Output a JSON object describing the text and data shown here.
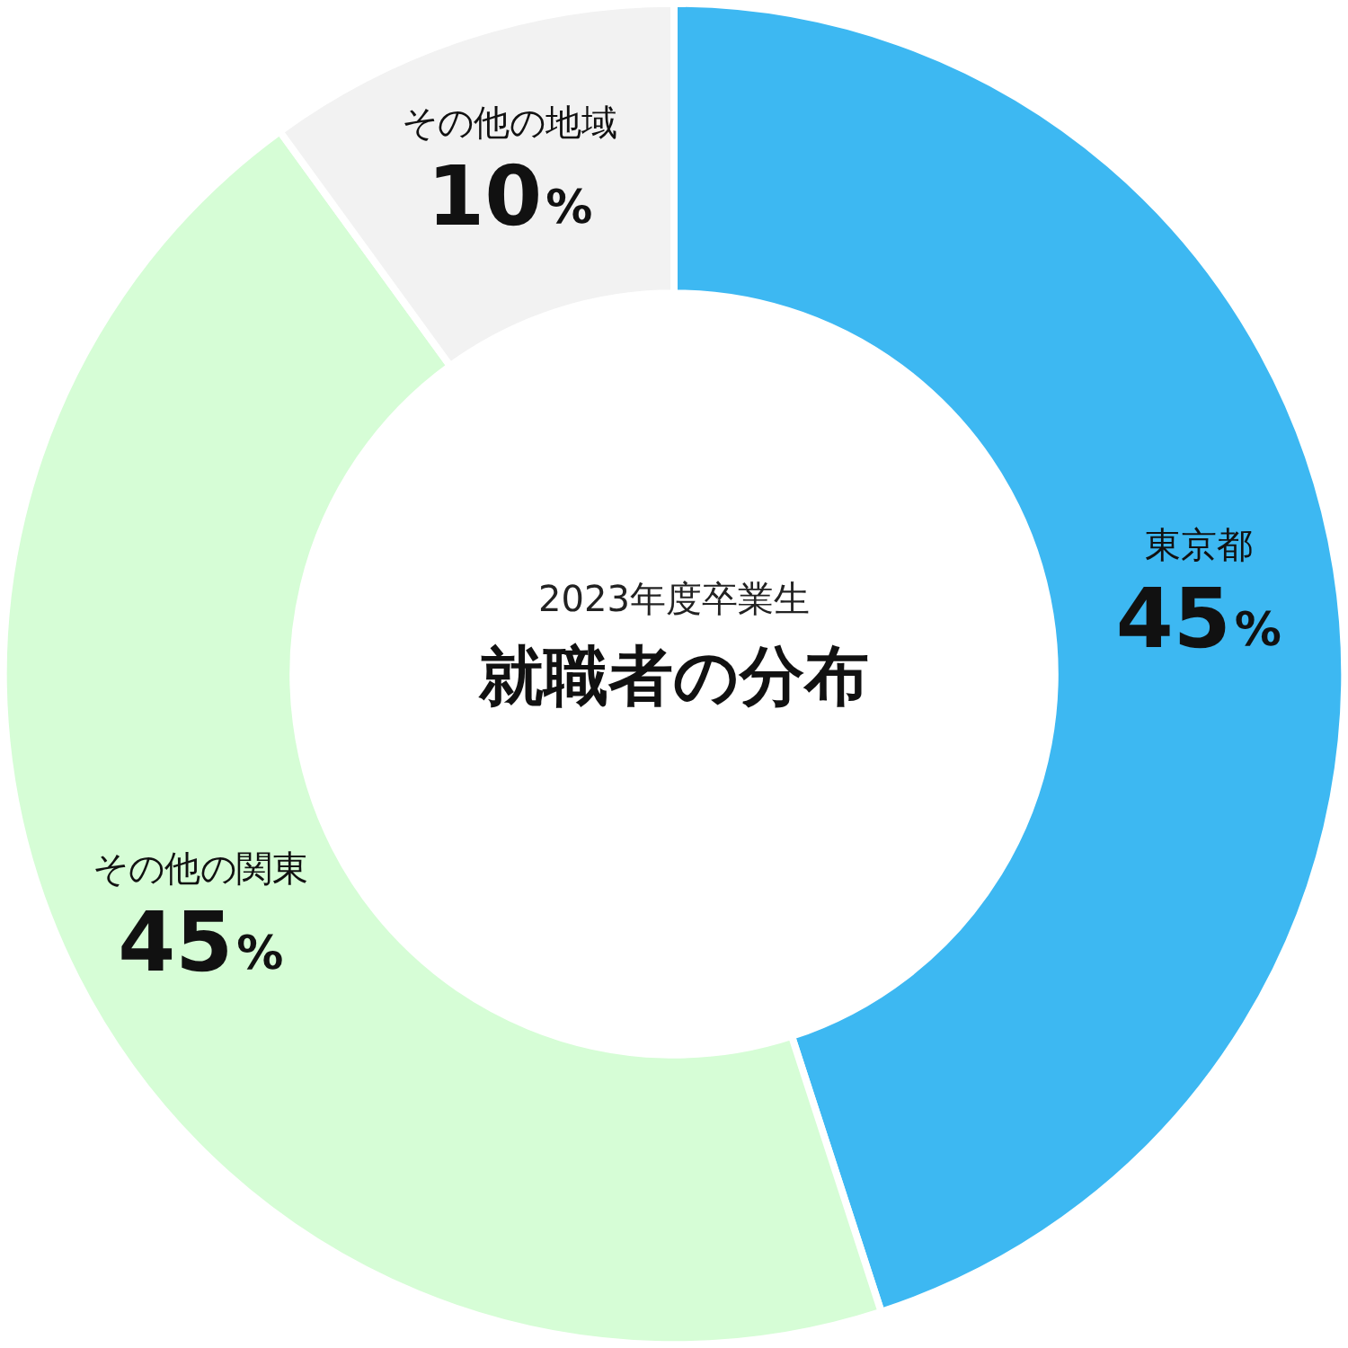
{
  "chart_data": {
    "type": "donut",
    "title": "就職者の分布",
    "subtitle": "2023年度卒業生",
    "categories": [
      "東京都",
      "その他の関東",
      "その他の地域"
    ],
    "values": [
      45,
      45,
      10
    ],
    "colors": [
      "#3db8f2",
      "#d6fdd6",
      "#f2f2f2"
    ],
    "data_labels": true,
    "value_labels": [
      "45%",
      "45%",
      "10%"
    ]
  }
}
